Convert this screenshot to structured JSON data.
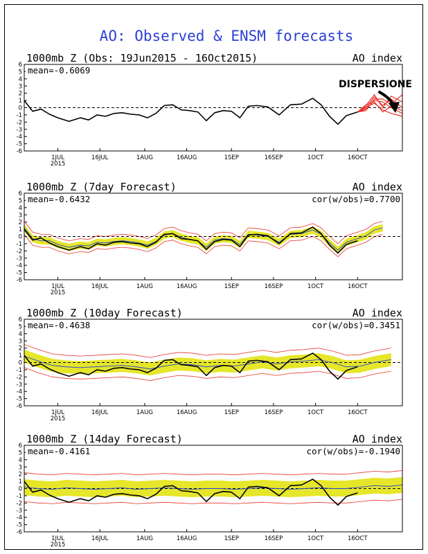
{
  "title": "AO: Observed & ENSM forecasts",
  "annotation": "DISPERSIONE",
  "x_ticks": [
    "1JUL",
    "16JUL",
    "1AUG",
    "16AUG",
    "1SEP",
    "16SEP",
    "1OCT",
    "16OCT"
  ],
  "x_year": "2015",
  "y_ticks": [
    "6",
    "5",
    "4",
    "3",
    "2",
    "1",
    "0",
    "-1",
    "-2",
    "-3",
    "-4",
    "-5",
    "-6"
  ],
  "colors": {
    "title": "#2b3fd6",
    "observed": "#000000",
    "ensemble_members": "#e8322a",
    "ensemble_spread": "#e6e62a",
    "zero_line": "#000000",
    "mean_line": "#2244cc"
  },
  "chart_data": [
    {
      "type": "line",
      "panel_title": "1000mb Z (Obs: 19Jun2015 - 16Oct2015)",
      "index_label": "AO index",
      "mean_label": "mean=-0.6069",
      "ylim": [
        -6,
        6
      ],
      "xlim": [
        "2015-06-19",
        "2015-11-01"
      ],
      "series": [
        {
          "name": "",
          "kind": "observed",
          "x": [
            "2015-06-19",
            "2015-06-22",
            "2015-06-25",
            "2015-06-28",
            "2015-07-01",
            "2015-07-05",
            "2015-07-09",
            "2015-07-12",
            "2015-07-15",
            "2015-07-18",
            "2015-07-21",
            "2015-07-24",
            "2015-07-27",
            "2015-07-30",
            "2015-08-02",
            "2015-08-05",
            "2015-08-08",
            "2015-08-11",
            "2015-08-14",
            "2015-08-17",
            "2015-08-20",
            "2015-08-23",
            "2015-08-26",
            "2015-08-29",
            "2015-09-01",
            "2015-09-04",
            "2015-09-07",
            "2015-09-10",
            "2015-09-14",
            "2015-09-18",
            "2015-09-22",
            "2015-09-26",
            "2015-09-30",
            "2015-10-03",
            "2015-10-06",
            "2015-10-09",
            "2015-10-12",
            "2015-10-16"
          ],
          "y": [
            1.0,
            -0.5,
            -0.2,
            -0.9,
            -1.4,
            -1.9,
            -1.4,
            -1.7,
            -1.0,
            -1.2,
            -0.8,
            -0.7,
            -0.9,
            -1.0,
            -1.4,
            -0.8,
            0.3,
            0.4,
            -0.3,
            -0.4,
            -0.6,
            -1.8,
            -0.7,
            -0.4,
            -0.5,
            -1.4,
            0.2,
            0.3,
            0.1,
            -1.0,
            0.4,
            0.5,
            1.3,
            0.4,
            -1.2,
            -2.3,
            -1.1,
            -0.6
          ]
        },
        {
          "name": "",
          "kind": "forecast_members",
          "x": [
            "2015-10-16",
            "2015-10-19",
            "2015-10-22",
            "2015-10-25",
            "2015-10-28",
            "2015-11-01"
          ],
          "members": [
            [
              -0.6,
              0.0,
              1.5,
              0.3,
              1.2,
              0.0
            ],
            [
              -0.6,
              -0.2,
              1.0,
              0.8,
              0.0,
              -0.8
            ],
            [
              -0.6,
              0.3,
              1.8,
              0.0,
              1.6,
              0.8
            ],
            [
              -0.6,
              0.1,
              0.6,
              -0.3,
              -0.8,
              -1.2
            ],
            [
              -0.6,
              -0.4,
              1.2,
              1.2,
              0.5,
              1.8
            ],
            [
              -0.6,
              0.4,
              0.8,
              -0.6,
              0.2,
              -0.4
            ]
          ]
        }
      ]
    },
    {
      "type": "line",
      "panel_title": "1000mb Z (7day Forecast)",
      "index_label": "AO index",
      "mean_label": "mean=-0.6432",
      "corr_label": "cor(w/obs)=0.7700",
      "ylim": [
        -6,
        6
      ],
      "xlim": [
        "2015-06-19",
        "2015-11-01"
      ],
      "series": [
        {
          "name": "",
          "kind": "ensemble_mean",
          "x": [
            "2015-06-19",
            "2015-06-22",
            "2015-06-25",
            "2015-06-28",
            "2015-07-01",
            "2015-07-05",
            "2015-07-09",
            "2015-07-12",
            "2015-07-15",
            "2015-07-18",
            "2015-07-21",
            "2015-07-24",
            "2015-07-27",
            "2015-07-30",
            "2015-08-02",
            "2015-08-05",
            "2015-08-08",
            "2015-08-11",
            "2015-08-14",
            "2015-08-17",
            "2015-08-20",
            "2015-08-23",
            "2015-08-26",
            "2015-08-29",
            "2015-09-01",
            "2015-09-04",
            "2015-09-07",
            "2015-09-10",
            "2015-09-14",
            "2015-09-18",
            "2015-09-22",
            "2015-09-26",
            "2015-09-30",
            "2015-10-03",
            "2015-10-06",
            "2015-10-09",
            "2015-10-12",
            "2015-10-16",
            "2015-10-19",
            "2015-10-22",
            "2015-10-25"
          ],
          "y": [
            1.2,
            -0.3,
            -0.6,
            -0.6,
            -1.1,
            -1.5,
            -1.2,
            -1.3,
            -0.8,
            -0.9,
            -0.7,
            -0.6,
            -0.7,
            -0.9,
            -1.2,
            -0.7,
            0.2,
            0.4,
            -0.1,
            -0.4,
            -0.6,
            -1.5,
            -0.5,
            -0.3,
            -0.4,
            -1.1,
            0.3,
            0.2,
            0.0,
            -0.8,
            0.3,
            0.4,
            0.9,
            0.3,
            -0.9,
            -1.9,
            -0.8,
            -0.3,
            0.1,
            0.9,
            1.2
          ]
        },
        {
          "name": "",
          "kind": "observed",
          "x": [
            "2015-06-19",
            "2015-06-22",
            "2015-06-25",
            "2015-06-28",
            "2015-07-01",
            "2015-07-05",
            "2015-07-09",
            "2015-07-12",
            "2015-07-15",
            "2015-07-18",
            "2015-07-21",
            "2015-07-24",
            "2015-07-27",
            "2015-07-30",
            "2015-08-02",
            "2015-08-05",
            "2015-08-08",
            "2015-08-11",
            "2015-08-14",
            "2015-08-17",
            "2015-08-20",
            "2015-08-23",
            "2015-08-26",
            "2015-08-29",
            "2015-09-01",
            "2015-09-04",
            "2015-09-07",
            "2015-09-10",
            "2015-09-14",
            "2015-09-18",
            "2015-09-22",
            "2015-09-26",
            "2015-09-30",
            "2015-10-03",
            "2015-10-06",
            "2015-10-09",
            "2015-10-12",
            "2015-10-16"
          ],
          "y": [
            1.0,
            -0.5,
            -0.2,
            -0.9,
            -1.4,
            -1.9,
            -1.4,
            -1.7,
            -1.0,
            -1.2,
            -0.8,
            -0.7,
            -0.9,
            -1.0,
            -1.4,
            -0.8,
            0.3,
            0.4,
            -0.3,
            -0.4,
            -0.6,
            -1.8,
            -0.7,
            -0.4,
            -0.5,
            -1.4,
            0.2,
            0.3,
            0.1,
            -1.0,
            0.4,
            0.5,
            1.3,
            0.4,
            -1.2,
            -2.3,
            -1.1,
            -0.6
          ]
        }
      ],
      "spread_halfwidth": 0.5,
      "member_halfwidth": 0.9
    },
    {
      "type": "line",
      "panel_title": "1000mb Z (10day Forecast)",
      "index_label": "AO index",
      "mean_label": "mean=-0.4638",
      "corr_label": "cor(w/obs)=0.3451",
      "ylim": [
        -6,
        6
      ],
      "xlim": [
        "2015-06-19",
        "2015-11-01"
      ],
      "series": [
        {
          "name": "",
          "kind": "ensemble_mean",
          "x": [
            "2015-06-19",
            "2015-06-24",
            "2015-06-29",
            "2015-07-04",
            "2015-07-09",
            "2015-07-14",
            "2015-07-19",
            "2015-07-24",
            "2015-07-29",
            "2015-08-03",
            "2015-08-08",
            "2015-08-13",
            "2015-08-18",
            "2015-08-23",
            "2015-08-28",
            "2015-09-02",
            "2015-09-07",
            "2015-09-12",
            "2015-09-17",
            "2015-09-22",
            "2015-09-27",
            "2015-10-02",
            "2015-10-07",
            "2015-10-12",
            "2015-10-17",
            "2015-10-22",
            "2015-10-28"
          ],
          "y": [
            0.9,
            0.2,
            -0.4,
            -0.6,
            -0.7,
            -0.6,
            -0.5,
            -0.4,
            -0.6,
            -0.9,
            -0.5,
            -0.2,
            -0.3,
            -0.6,
            -0.4,
            -0.5,
            -0.2,
            0.1,
            -0.2,
            0.1,
            0.2,
            0.4,
            0.0,
            -0.6,
            -0.5,
            0.0,
            0.4
          ]
        },
        {
          "name": "",
          "kind": "observed",
          "x": [
            "2015-06-19",
            "2015-06-22",
            "2015-06-25",
            "2015-06-28",
            "2015-07-01",
            "2015-07-05",
            "2015-07-09",
            "2015-07-12",
            "2015-07-15",
            "2015-07-18",
            "2015-07-21",
            "2015-07-24",
            "2015-07-27",
            "2015-07-30",
            "2015-08-02",
            "2015-08-05",
            "2015-08-08",
            "2015-08-11",
            "2015-08-14",
            "2015-08-17",
            "2015-08-20",
            "2015-08-23",
            "2015-08-26",
            "2015-08-29",
            "2015-09-01",
            "2015-09-04",
            "2015-09-07",
            "2015-09-10",
            "2015-09-14",
            "2015-09-18",
            "2015-09-22",
            "2015-09-26",
            "2015-09-30",
            "2015-10-03",
            "2015-10-06",
            "2015-10-09",
            "2015-10-12",
            "2015-10-16"
          ],
          "y": [
            1.0,
            -0.5,
            -0.2,
            -0.9,
            -1.4,
            -1.9,
            -1.4,
            -1.7,
            -1.0,
            -1.2,
            -0.8,
            -0.7,
            -0.9,
            -1.0,
            -1.4,
            -0.8,
            0.3,
            0.4,
            -0.3,
            -0.4,
            -0.6,
            -1.8,
            -0.7,
            -0.4,
            -0.5,
            -1.4,
            0.2,
            0.3,
            0.1,
            -1.0,
            0.4,
            0.5,
            1.3,
            0.4,
            -1.2,
            -2.3,
            -1.1,
            -0.6
          ]
        }
      ],
      "spread_halfwidth": 0.9,
      "member_halfwidth": 1.6
    },
    {
      "type": "line",
      "panel_title": "1000mb Z (14day Forecast)",
      "index_label": "AO index",
      "mean_label": "mean=-0.4161",
      "corr_label": "cor(w/obs)=-0.1940",
      "ylim": [
        -6,
        6
      ],
      "xlim": [
        "2015-06-19",
        "2015-11-01"
      ],
      "series": [
        {
          "name": "",
          "kind": "ensemble_mean",
          "x": [
            "2015-06-19",
            "2015-06-24",
            "2015-06-29",
            "2015-07-04",
            "2015-07-09",
            "2015-07-14",
            "2015-07-19",
            "2015-07-24",
            "2015-07-29",
            "2015-08-03",
            "2015-08-08",
            "2015-08-13",
            "2015-08-18",
            "2015-08-23",
            "2015-08-28",
            "2015-09-02",
            "2015-09-07",
            "2015-09-12",
            "2015-09-17",
            "2015-09-22",
            "2015-09-27",
            "2015-10-02",
            "2015-10-07",
            "2015-10-12",
            "2015-10-17",
            "2015-10-22",
            "2015-10-27",
            "2015-11-01"
          ],
          "y": [
            0.2,
            0.0,
            -0.1,
            0.1,
            0.0,
            -0.1,
            0.0,
            0.1,
            -0.1,
            0.0,
            0.1,
            0.0,
            -0.1,
            0.0,
            0.0,
            -0.1,
            0.0,
            0.1,
            0.0,
            -0.1,
            0.0,
            0.1,
            0.0,
            0.0,
            0.2,
            0.4,
            0.3,
            0.5
          ]
        },
        {
          "name": "",
          "kind": "observed",
          "x": [
            "2015-06-19",
            "2015-06-22",
            "2015-06-25",
            "2015-06-28",
            "2015-07-01",
            "2015-07-05",
            "2015-07-09",
            "2015-07-12",
            "2015-07-15",
            "2015-07-18",
            "2015-07-21",
            "2015-07-24",
            "2015-07-27",
            "2015-07-30",
            "2015-08-02",
            "2015-08-05",
            "2015-08-08",
            "2015-08-11",
            "2015-08-14",
            "2015-08-17",
            "2015-08-20",
            "2015-08-23",
            "2015-08-26",
            "2015-08-29",
            "2015-09-01",
            "2015-09-04",
            "2015-09-07",
            "2015-09-10",
            "2015-09-14",
            "2015-09-18",
            "2015-09-22",
            "2015-09-26",
            "2015-09-30",
            "2015-10-03",
            "2015-10-06",
            "2015-10-09",
            "2015-10-12",
            "2015-10-16"
          ],
          "y": [
            1.0,
            -0.5,
            -0.2,
            -0.9,
            -1.4,
            -1.9,
            -1.4,
            -1.7,
            -1.0,
            -1.2,
            -0.8,
            -0.7,
            -0.9,
            -1.0,
            -1.4,
            -0.8,
            0.3,
            0.4,
            -0.3,
            -0.4,
            -0.6,
            -1.8,
            -0.7,
            -0.4,
            -0.5,
            -1.4,
            0.2,
            0.3,
            0.1,
            -1.0,
            0.4,
            0.5,
            1.3,
            0.4,
            -1.2,
            -2.3,
            -1.1,
            -0.6
          ]
        }
      ],
      "spread_halfwidth": 1.1,
      "member_halfwidth": 2.0
    }
  ]
}
